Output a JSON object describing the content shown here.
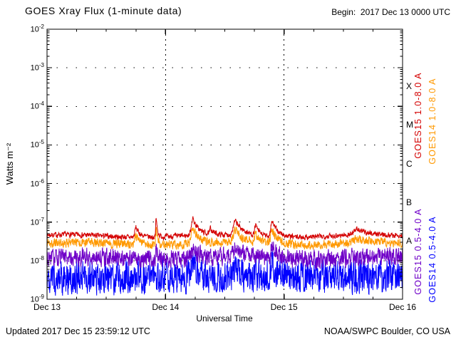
{
  "header": {
    "title": "GOES Xray Flux (1-minute data)",
    "begin": "Begin:  2017 Dec 13 0000 UTC"
  },
  "footer": {
    "updated": "Updated 2017 Dec 15 23:59:12 UTC",
    "credit": "NOAA/SWPC Boulder, CO USA"
  },
  "chart_data": {
    "type": "line",
    "title": "GOES Xray Flux (1-minute data)",
    "xlabel": "Universal Time",
    "ylabel": "Watts m⁻²",
    "y_scale": "log",
    "y_axis": {
      "exp_max": -2,
      "exp_min": -9,
      "unit": "Watts m-2"
    },
    "y_ticks": [
      -2,
      -3,
      -4,
      -5,
      -6,
      -7,
      -8,
      -9
    ],
    "x_axis": {
      "start_utc": "2017 Dec 13 0000 UTC",
      "days": 3,
      "tick_labels": [
        "Dec 13",
        "Dec 14",
        "Dec 15",
        "Dec 16"
      ]
    },
    "grid": {
      "horizontal_dashed_decades": true,
      "vertical_dashed_days": true
    },
    "flare_classes": [
      {
        "label": "X",
        "between_exp": [
          -4,
          -3
        ]
      },
      {
        "label": "M",
        "between_exp": [
          -5,
          -4
        ]
      },
      {
        "label": "C",
        "between_exp": [
          -6,
          -5
        ]
      },
      {
        "label": "B",
        "between_exp": [
          -7,
          -6
        ]
      },
      {
        "label": "A",
        "between_exp": [
          -8,
          -7
        ]
      }
    ],
    "series": [
      {
        "name": "GOES15 1.0-8.0 A",
        "color": "#d40000",
        "base_log": -7.36,
        "noise_log": 0.09,
        "seed": 7,
        "spikes": [
          [
            0.75,
            -7.1,
            0.035
          ],
          [
            0.92,
            -6.82,
            0.012
          ],
          [
            1.23,
            -6.92,
            0.05
          ],
          [
            1.38,
            -7.18,
            0.025
          ],
          [
            1.59,
            -7.0,
            0.07
          ],
          [
            1.76,
            -7.07,
            0.035
          ],
          [
            1.9,
            -6.95,
            0.05
          ],
          [
            2.61,
            -7.22,
            0.1
          ]
        ]
      },
      {
        "name": "GOES14 1.0-8.0 A",
        "color": "#ff9900",
        "base_log": -7.56,
        "noise_log": 0.15,
        "seed": 19,
        "spikes": [
          [
            0.75,
            -7.32,
            0.035
          ],
          [
            0.92,
            -7.1,
            0.012
          ],
          [
            1.23,
            -7.15,
            0.05
          ],
          [
            1.59,
            -7.25,
            0.07
          ],
          [
            1.76,
            -7.3,
            0.035
          ],
          [
            1.9,
            -7.2,
            0.05
          ],
          [
            2.61,
            -7.45,
            0.1
          ]
        ]
      },
      {
        "name": "GOES15 0.5-4.0 A",
        "color": "#6f00c8",
        "base_log": -7.93,
        "noise_log": 0.3,
        "seed": 31,
        "spikes": [
          [
            0.92,
            -7.6,
            0.012
          ],
          [
            1.23,
            -7.62,
            0.045
          ],
          [
            1.59,
            -7.7,
            0.06
          ],
          [
            1.9,
            -7.65,
            0.045
          ]
        ]
      },
      {
        "name": "GOES14 0.5-4.0 A",
        "color": "#0000ff",
        "base_log": -8.42,
        "noise_log": 0.55,
        "seed": 47,
        "spikes": [
          [
            1.23,
            -8.05,
            0.045
          ],
          [
            1.59,
            -8.1,
            0.06
          ],
          [
            1.9,
            -8.05,
            0.045
          ]
        ]
      }
    ]
  }
}
